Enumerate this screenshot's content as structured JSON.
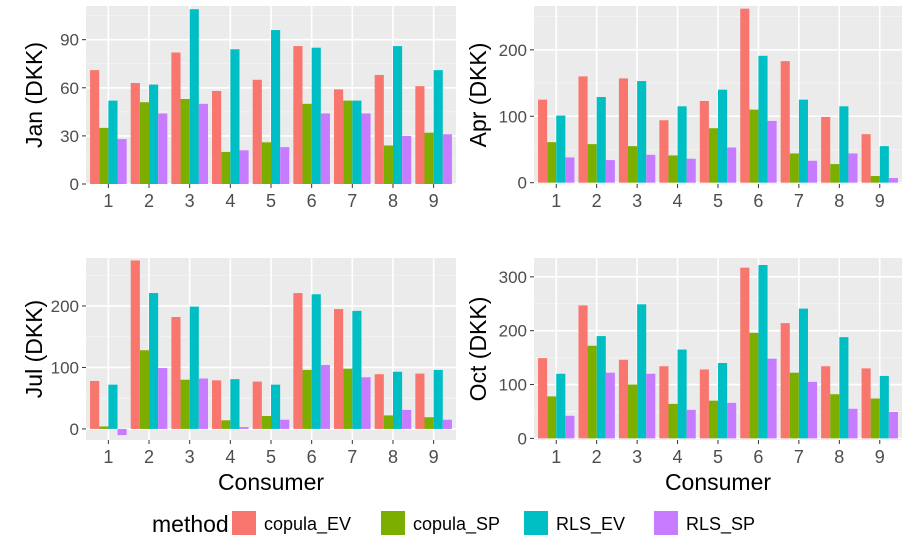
{
  "chart_data": [
    {
      "type": "bar",
      "ylabel": "Jan (DKK)",
      "xlabel": "",
      "categories": [
        "1",
        "2",
        "3",
        "4",
        "5",
        "6",
        "7",
        "8",
        "9"
      ],
      "yticks": [
        0,
        30,
        60,
        90
      ],
      "ylim": [
        0,
        111
      ],
      "series": [
        {
          "name": "copula_EV",
          "values": [
            71,
            63,
            82,
            58,
            65,
            86,
            59,
            68,
            61
          ]
        },
        {
          "name": "copula_SP",
          "values": [
            35,
            51,
            53,
            20,
            26,
            50,
            52,
            24,
            32
          ]
        },
        {
          "name": "RLS_EV",
          "values": [
            52,
            62,
            109,
            84,
            96,
            85,
            52,
            86,
            71
          ]
        },
        {
          "name": "RLS_SP",
          "values": [
            28,
            44,
            50,
            21,
            23,
            44,
            44,
            30,
            31
          ]
        }
      ]
    },
    {
      "type": "bar",
      "ylabel": "Apr (DKK)",
      "xlabel": "",
      "categories": [
        "1",
        "2",
        "3",
        "4",
        "5",
        "6",
        "7",
        "8",
        "9"
      ],
      "yticks": [
        0,
        100,
        200
      ],
      "ylim": [
        -2,
        266
      ],
      "series": [
        {
          "name": "copula_EV",
          "values": [
            125,
            160,
            157,
            94,
            123,
            262,
            183,
            99,
            73
          ]
        },
        {
          "name": "copula_SP",
          "values": [
            61,
            58,
            55,
            41,
            82,
            110,
            44,
            28,
            10
          ]
        },
        {
          "name": "RLS_EV",
          "values": [
            101,
            129,
            153,
            115,
            140,
            191,
            125,
            115,
            55
          ]
        },
        {
          "name": "RLS_SP",
          "values": [
            38,
            34,
            42,
            36,
            53,
            93,
            33,
            44,
            7
          ]
        }
      ]
    },
    {
      "type": "bar",
      "ylabel": "Jul (DKK)",
      "xlabel": "Consumer",
      "categories": [
        "1",
        "2",
        "3",
        "4",
        "5",
        "6",
        "7",
        "8",
        "9"
      ],
      "yticks": [
        0,
        100,
        200
      ],
      "ylim": [
        -18,
        278
      ],
      "series": [
        {
          "name": "copula_EV",
          "values": [
            78,
            274,
            182,
            79,
            77,
            221,
            195,
            89,
            90
          ]
        },
        {
          "name": "copula_SP",
          "values": [
            4,
            128,
            80,
            14,
            21,
            96,
            98,
            22,
            19
          ]
        },
        {
          "name": "RLS_EV",
          "values": [
            72,
            221,
            199,
            81,
            72,
            219,
            192,
            93,
            96
          ]
        },
        {
          "name": "RLS_SP",
          "values": [
            -10,
            99,
            82,
            3,
            15,
            104,
            84,
            31,
            15
          ]
        }
      ]
    },
    {
      "type": "bar",
      "ylabel": "Oct (DKK)",
      "xlabel": "Consumer",
      "categories": [
        "1",
        "2",
        "3",
        "4",
        "5",
        "6",
        "7",
        "8",
        "9"
      ],
      "yticks": [
        0,
        100,
        200,
        300
      ],
      "ylim": [
        -3,
        335
      ],
      "series": [
        {
          "name": "copula_EV",
          "values": [
            149,
            247,
            146,
            134,
            128,
            317,
            214,
            134,
            130
          ]
        },
        {
          "name": "copula_SP",
          "values": [
            78,
            172,
            100,
            64,
            70,
            196,
            122,
            82,
            74
          ]
        },
        {
          "name": "RLS_EV",
          "values": [
            120,
            190,
            249,
            165,
            140,
            322,
            241,
            188,
            116
          ]
        },
        {
          "name": "RLS_SP",
          "values": [
            42,
            122,
            120,
            53,
            66,
            148,
            105,
            55,
            49
          ]
        }
      ]
    }
  ],
  "legend": {
    "title": "method",
    "placement": "bottom",
    "items": [
      {
        "name": "copula_EV",
        "color": "#F8766D"
      },
      {
        "name": "copula_SP",
        "color": "#7CAE00"
      },
      {
        "name": "RLS_EV",
        "color": "#00BFC4"
      },
      {
        "name": "RLS_SP",
        "color": "#C77CFF"
      }
    ]
  },
  "style": {
    "panel_background": "#EBEBEB",
    "grid_major": "#FFFFFF",
    "text_color": "#4D4D4D",
    "title_color": "#000000"
  }
}
